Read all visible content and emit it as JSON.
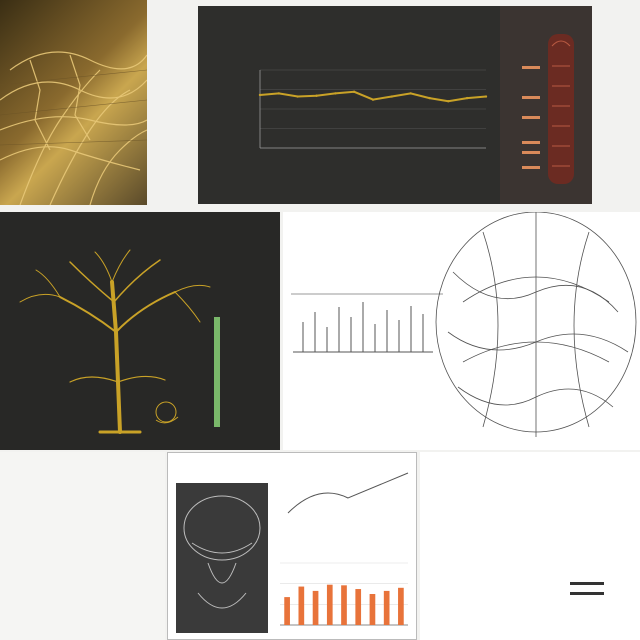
{
  "panels": {
    "top_left": {
      "caption": ""
    },
    "top_chart": {
      "title": "",
      "subtitle": ""
    },
    "mid_left": {
      "title": ""
    },
    "mid_center": {
      "title": ""
    },
    "bottom_left": {
      "handwriting": ""
    },
    "bottom_center": {
      "title": ""
    },
    "bottom_right": {
      "text": ""
    }
  },
  "colors": {
    "gold": "#c9a227",
    "dark_panel": "#2b2b2b",
    "chart_bg": "#3a3a38",
    "orange_bar": "#e8733a",
    "paper": "#ffffff"
  },
  "chart_data": [
    {
      "type": "line",
      "x": [
        0,
        1,
        2,
        3,
        4,
        5,
        6,
        7,
        8,
        9,
        10,
        11,
        12
      ],
      "series": [
        {
          "values": [
            68,
            70,
            66,
            67,
            70,
            72,
            62,
            66,
            70,
            64,
            60,
            64,
            66
          ]
        }
      ],
      "ylim": [
        0,
        100
      ],
      "grid": true
    },
    {
      "type": "bar",
      "categories": [
        "",
        "",
        "",
        "",
        "",
        "",
        "",
        "",
        ""
      ],
      "values": [
        45,
        62,
        55,
        65,
        64,
        58,
        50,
        55,
        60
      ],
      "grid": true
    }
  ]
}
